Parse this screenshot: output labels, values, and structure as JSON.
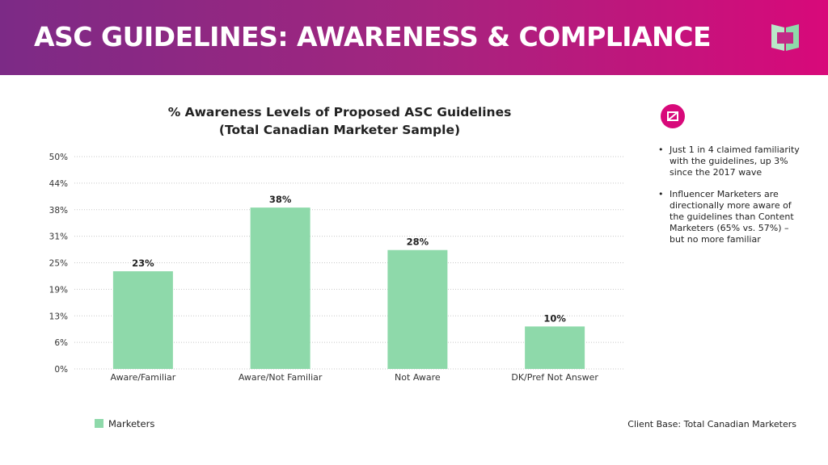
{
  "header": {
    "title": "ASC GUIDELINES: AWARENESS & COMPLIANCE",
    "logo_icon": "brand-logo-icon"
  },
  "colors": {
    "header_gradient_start": "#7c2a86",
    "header_gradient_end": "#d8097a",
    "bar": "#8ed9aa",
    "accent": "#d8097a"
  },
  "chart_data": {
    "type": "bar",
    "title_line1": "% Awareness Levels of Proposed ASC Guidelines",
    "title_line2": "(Total Canadian Marketer Sample)",
    "categories": [
      "Aware/Familiar",
      "Aware/Not Familiar",
      "Not Aware",
      "DK/Pref Not Answer"
    ],
    "series": [
      {
        "name": "Marketers",
        "values": [
          23,
          38,
          28,
          10
        ],
        "labels": [
          "23%",
          "38%",
          "28%",
          "10%"
        ]
      }
    ],
    "yticks": [
      "0%",
      "6%",
      "13%",
      "19%",
      "25%",
      "31%",
      "38%",
      "44%",
      "50%"
    ],
    "ylim": [
      0,
      50
    ],
    "grid": true,
    "legend_position": "bottom-left"
  },
  "insights": {
    "icon": "insight-icon",
    "bullet": "•",
    "items": [
      "Just 1 in 4 claimed familiarity with the guidelines, up 3% since the 2017 wave",
      "Influencer Marketers are directionally more aware of the guidelines than Content Marketers (65% vs. 57%) – but no more familiar"
    ]
  },
  "footer": {
    "legend_label": "Marketers",
    "source": "Client Base:  Total Canadian Marketers"
  }
}
